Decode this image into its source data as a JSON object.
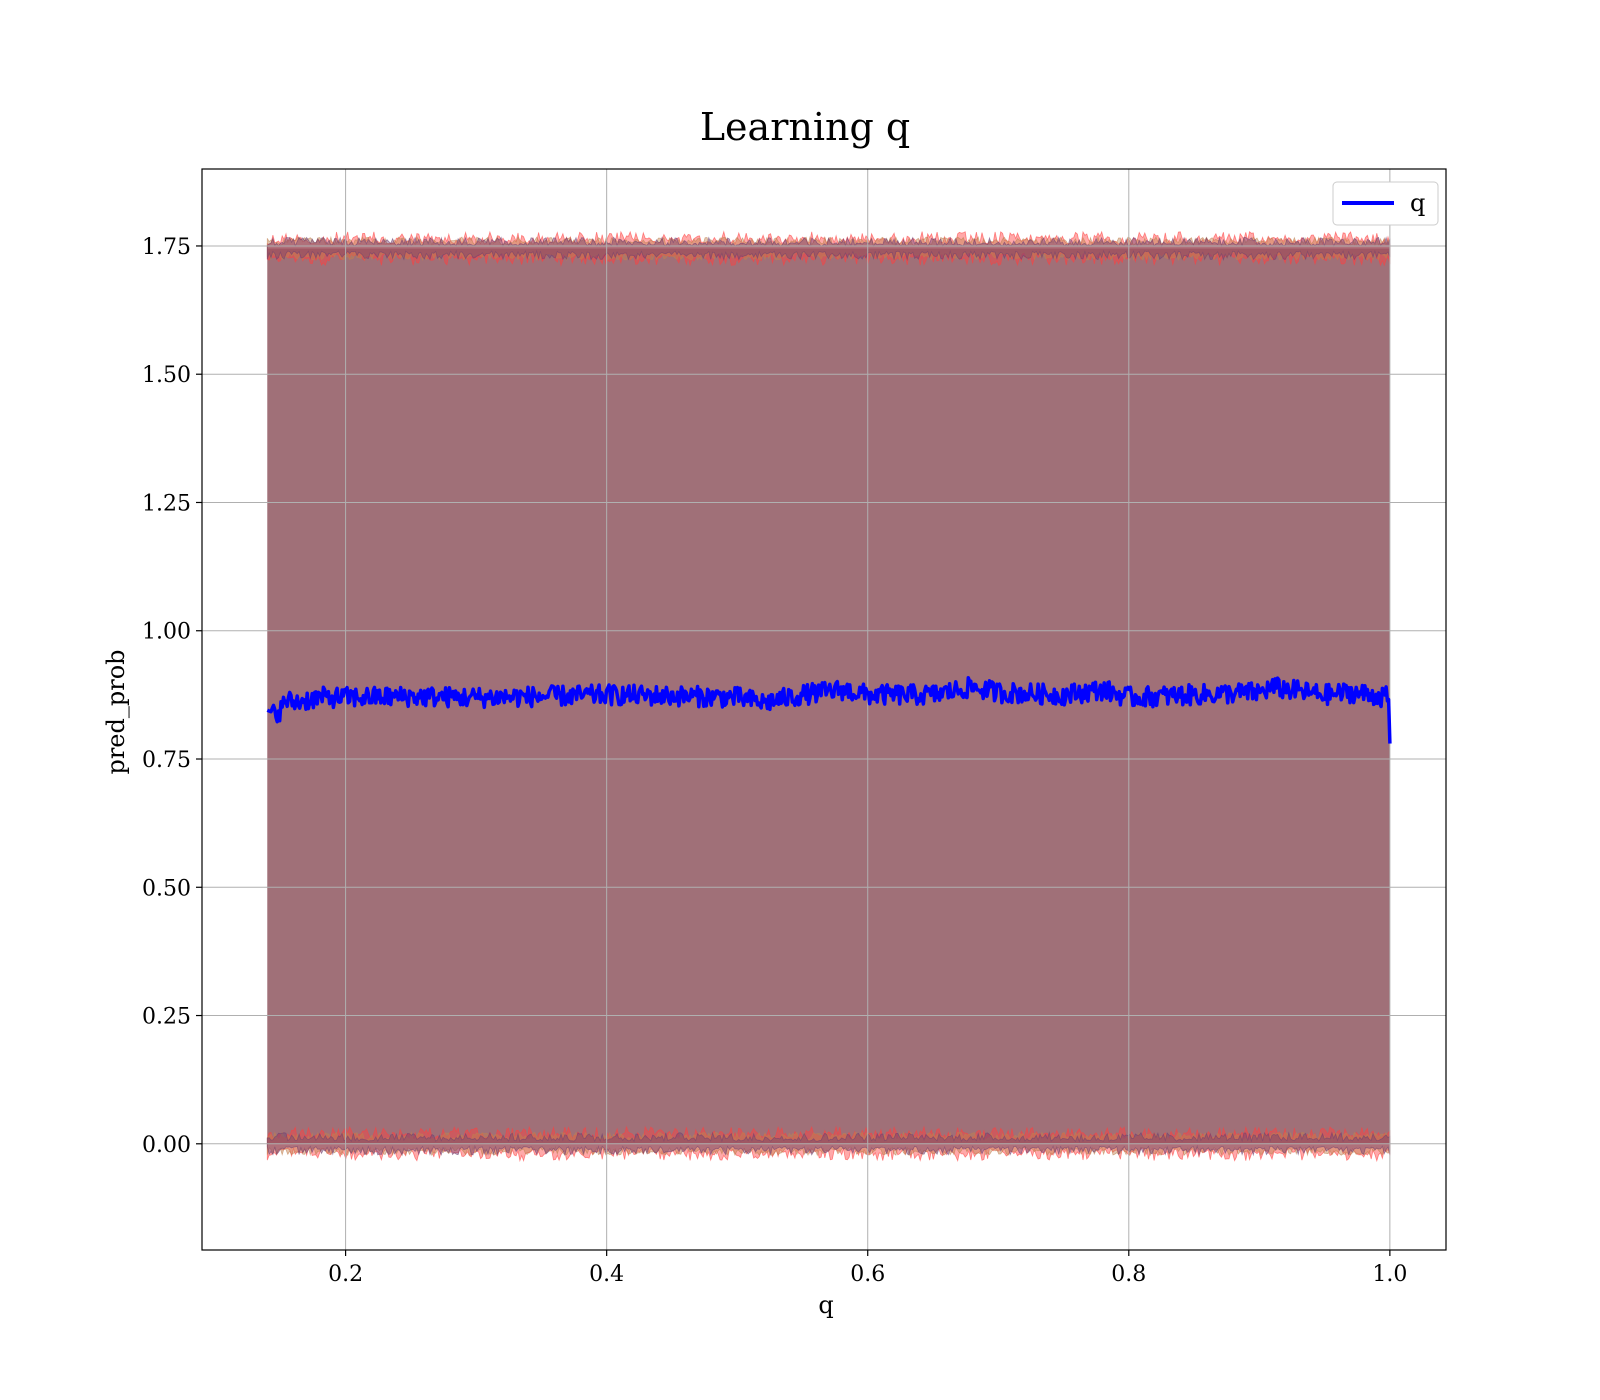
{
  "chart_data": {
    "type": "line",
    "title": "Learning q",
    "xlabel": "q",
    "ylabel": "pred_prob",
    "xlim": [
      0.09,
      1.043
    ],
    "ylim": [
      -0.207,
      1.9
    ],
    "xticks": [
      0.2,
      0.4,
      0.6,
      0.8,
      1.0
    ],
    "xtick_labels": [
      "0.2",
      "0.4",
      "0.6",
      "0.8",
      "1.0"
    ],
    "yticks": [
      0.0,
      0.25,
      0.5,
      0.75,
      1.0,
      1.25,
      1.5,
      1.75
    ],
    "ytick_labels": [
      "0.00",
      "0.25",
      "0.50",
      "0.75",
      "1.00",
      "1.25",
      "1.50",
      "1.75"
    ],
    "grid": true,
    "legend": {
      "placement": "top-right",
      "entries": [
        {
          "name": "q",
          "color": "#0000ff"
        }
      ]
    },
    "x_range": [
      0.14,
      1.0
    ],
    "series": [
      {
        "name": "q",
        "color": "#0000ff",
        "mean": 0.873,
        "noise_amplitude": 0.02,
        "x": [
          0.14,
          0.145,
          0.15,
          0.155,
          0.16,
          0.18,
          0.2,
          0.25,
          0.3,
          0.35,
          0.4,
          0.45,
          0.5,
          0.52,
          0.55,
          0.58,
          0.6,
          0.65,
          0.68,
          0.7,
          0.75,
          0.78,
          0.8,
          0.85,
          0.9,
          0.91,
          0.95,
          0.97,
          0.999,
          1.0
        ],
        "values": [
          0.845,
          0.84,
          0.845,
          0.865,
          0.86,
          0.87,
          0.87,
          0.872,
          0.87,
          0.872,
          0.875,
          0.873,
          0.87,
          0.86,
          0.875,
          0.885,
          0.875,
          0.875,
          0.89,
          0.88,
          0.875,
          0.885,
          0.87,
          0.875,
          0.88,
          0.89,
          0.875,
          0.88,
          0.87,
          0.78
        ]
      }
    ],
    "bands": [
      {
        "name": "upper",
        "center": 1.745,
        "spread": 0.02,
        "colors": [
          "#ff4040",
          "#c08050",
          "#704070"
        ]
      },
      {
        "name": "lower",
        "center": 0.0,
        "spread": 0.02,
        "colors": [
          "#ff4040",
          "#c08050",
          "#704070"
        ]
      }
    ],
    "fill_color": "#a07078"
  }
}
